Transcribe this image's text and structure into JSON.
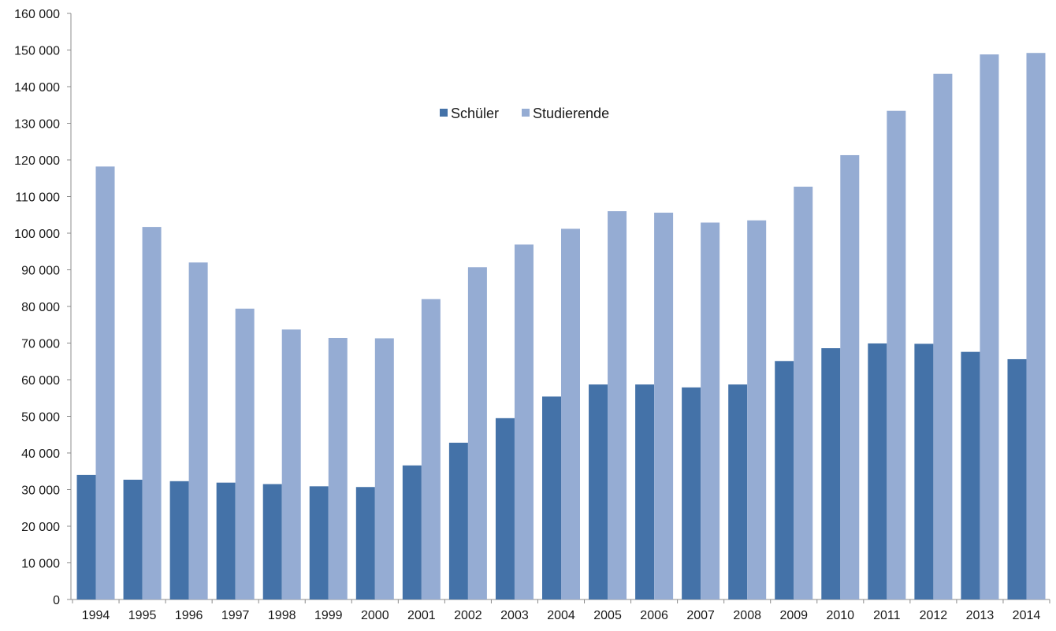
{
  "chart_data": {
    "type": "bar",
    "title": "",
    "xlabel": "",
    "ylabel": "",
    "ylim": [
      0,
      160000
    ],
    "ytick_step": 10000,
    "ytick_labels": [
      "0",
      "10 000",
      "20 000",
      "30 000",
      "40 000",
      "50 000",
      "60 000",
      "70 000",
      "80 000",
      "90 000",
      "100 000",
      "110 000",
      "120 000",
      "130 000",
      "140 000",
      "150 000",
      "160 000"
    ],
    "categories": [
      "1994",
      "1995",
      "1996",
      "1997",
      "1998",
      "1999",
      "2000",
      "2001",
      "2002",
      "2003",
      "2004",
      "2005",
      "2006",
      "2007",
      "2008",
      "2009",
      "2010",
      "2011",
      "2012",
      "2013",
      "2014"
    ],
    "series": [
      {
        "name": "Schüler",
        "color": "#4472a8",
        "values": [
          34000,
          32700,
          32300,
          31900,
          31500,
          30900,
          30700,
          36600,
          42800,
          49500,
          55400,
          58700,
          58700,
          57900,
          58700,
          65100,
          68600,
          69900,
          69800,
          67600,
          65600
        ]
      },
      {
        "name": "Studierende",
        "color": "#95acd3",
        "values": [
          118200,
          101700,
          92000,
          79400,
          73700,
          71400,
          71300,
          82000,
          90700,
          96900,
          101200,
          106000,
          105600,
          102900,
          103500,
          112700,
          121300,
          133400,
          143500,
          148800,
          149200
        ]
      }
    ],
    "legend_position": "top-center",
    "grid": false
  }
}
